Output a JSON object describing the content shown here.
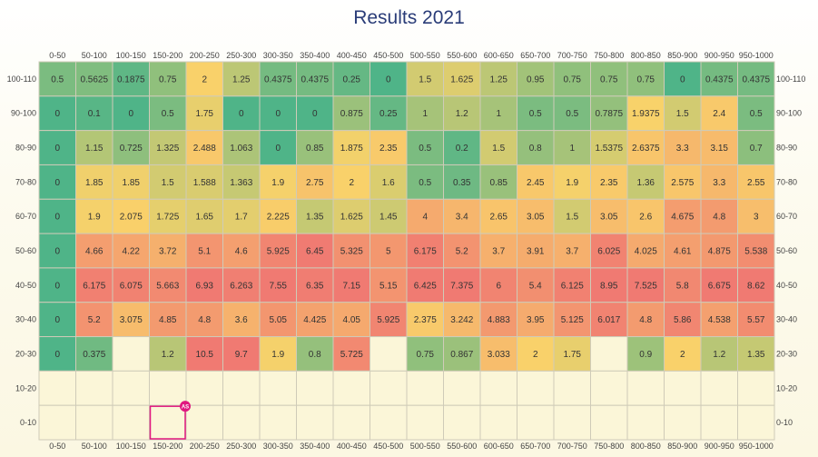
{
  "chart_data": {
    "type": "heatmap",
    "title": "Results 2021",
    "columns": [
      "0-50",
      "50-100",
      "100-150",
      "150-200",
      "200-250",
      "250-300",
      "300-350",
      "350-400",
      "400-450",
      "450-500",
      "500-550",
      "550-600",
      "600-650",
      "650-700",
      "700-750",
      "750-800",
      "800-850",
      "850-900",
      "900-950",
      "950-1000"
    ],
    "rows": [
      "100-110",
      "90-100",
      "80-90",
      "70-80",
      "60-70",
      "50-60",
      "40-50",
      "30-40",
      "20-30",
      "10-20",
      "0-10"
    ],
    "values": [
      [
        "0.5",
        "0.5625",
        "0.1875",
        "0.75",
        "2",
        "1.25",
        "0.4375",
        "0.4375",
        "0.25",
        "0",
        "1.5",
        "1.625",
        "1.25",
        "0.95",
        "0.75",
        "0.75",
        "0.75",
        "0",
        "0.4375",
        "0.4375"
      ],
      [
        "0",
        "0.1",
        "0",
        "0.5",
        "1.75",
        "0",
        "0",
        "0",
        "0.875",
        "0.25",
        "1",
        "1.2",
        "1",
        "0.5",
        "0.5",
        "0.7875",
        "1.9375",
        "1.5",
        "2.4",
        "0.5"
      ],
      [
        "0",
        "1.15",
        "0.725",
        "1.325",
        "2.488",
        "1.063",
        "0",
        "0.85",
        "1.875",
        "2.35",
        "0.5",
        "0.2",
        "1.5",
        "0.8",
        "1",
        "1.5375",
        "2.6375",
        "3.3",
        "3.15",
        "0.7"
      ],
      [
        "0",
        "1.85",
        "1.85",
        "1.5",
        "1.588",
        "1.363",
        "1.9",
        "2.75",
        "2",
        "1.6",
        "0.5",
        "0.35",
        "0.85",
        "2.45",
        "1.9",
        "2.35",
        "1.36",
        "2.575",
        "3.3",
        "2.55"
      ],
      [
        "0",
        "1.9",
        "2.075",
        "1.725",
        "1.65",
        "1.7",
        "2.225",
        "1.35",
        "1.625",
        "1.45",
        "4",
        "3.4",
        "2.65",
        "3.05",
        "1.5",
        "3.05",
        "2.6",
        "4.675",
        "4.8",
        "3"
      ],
      [
        "0",
        "4.66",
        "4.22",
        "3.72",
        "5.1",
        "4.6",
        "5.925",
        "6.45",
        "5.325",
        "5",
        "6.175",
        "5.2",
        "3.7",
        "3.91",
        "3.7",
        "6.025",
        "4.025",
        "4.61",
        "4.875",
        "5.538"
      ],
      [
        "0",
        "6.175",
        "6.075",
        "5.663",
        "6.93",
        "6.263",
        "7.55",
        "6.35",
        "7.15",
        "5.15",
        "6.425",
        "7.375",
        "6",
        "5.4",
        "6.125",
        "8.95",
        "7.525",
        "5.8",
        "6.675",
        "8.62"
      ],
      [
        "0",
        "5.2",
        "3.075",
        "4.85",
        "4.8",
        "3.6",
        "5.05",
        "4.425",
        "4.05",
        "5.925",
        "2.375",
        "3.242",
        "4.883",
        "3.95",
        "5.125",
        "6.017",
        "4.8",
        "5.86",
        "4.538",
        "5.57"
      ],
      [
        "0",
        "0.375",
        "",
        "1.2",
        "10.5",
        "9.7",
        "1.9",
        "0.8",
        "5.725",
        "",
        "0.75",
        "0.867",
        "3.033",
        "2",
        "1.75",
        "",
        "0.9",
        "2",
        "1.2",
        "1.35"
      ],
      [
        "",
        "",
        "",
        "",
        "",
        "",
        "",
        "",
        "",
        "",
        "",
        "",
        "",
        "",
        "",
        "",
        "",
        "",
        "",
        ""
      ],
      [
        "",
        "",
        "",
        "",
        "",
        "",
        "",
        "",
        "",
        "",
        "",
        "",
        "",
        "",
        "",
        "",
        "",
        "",
        "",
        ""
      ]
    ],
    "color_scale": [
      "#4fb488",
      "#f9d26a",
      "#f07a72"
    ],
    "selection": {
      "row": "0-10",
      "column": "150-200",
      "badge": "AS",
      "color": "#e0187f"
    }
  }
}
